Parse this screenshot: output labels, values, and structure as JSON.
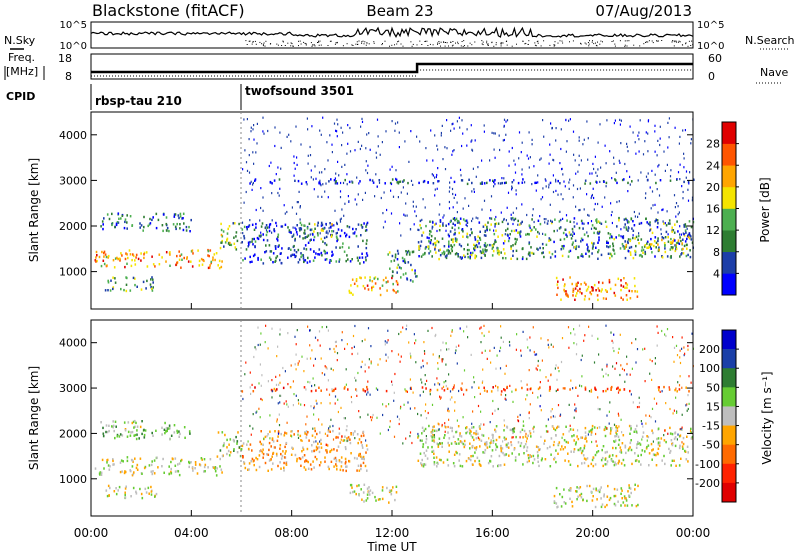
{
  "header": {
    "station": "Blackstone (fitACF)",
    "beam": "Beam 23",
    "date": "07/Aug/2013"
  },
  "noise_panel": {
    "left_label": "N.Sky",
    "right_label": "N.Search",
    "left_ticks": [
      "10^5",
      "10^0"
    ],
    "right_ticks": [
      "10^5",
      "10^0"
    ]
  },
  "freq_panel": {
    "left_label_line1": "Freq.",
    "left_label_line2": "[MHz]",
    "left_ticks": [
      "18",
      "8"
    ],
    "right_label": "Nave",
    "right_ticks": [
      "60",
      "0"
    ]
  },
  "cpid_panel": {
    "label": "CPID",
    "modes": [
      {
        "name": "rbsp-tau 210",
        "start": 0
      },
      {
        "name": "twofsound 3501",
        "start": 6
      }
    ]
  },
  "time_axis": {
    "label": "Time UT",
    "ticks": [
      "00:00",
      "04:00",
      "08:00",
      "12:00",
      "16:00",
      "20:00",
      "00:00"
    ]
  },
  "colors": {
    "background": "#ffffff",
    "axis": "#000000"
  },
  "chart_data": [
    {
      "type": "heatmap",
      "parameter": "power",
      "ylabel": "Slant Range [km]",
      "xlim": [
        0,
        24
      ],
      "ylim": [
        180,
        4500
      ],
      "yticks": [
        1000,
        2000,
        3000,
        4000
      ],
      "colorbar": {
        "label": "Power [dB]",
        "ticks": [
          4,
          8,
          12,
          16,
          20,
          24,
          28
        ],
        "colors": [
          "#0000ff",
          "#1c3ea8",
          "#2e7d32",
          "#4caf50",
          "#f4e400",
          "#ffa500",
          "#ff5500",
          "#e00000"
        ],
        "range": [
          0,
          32
        ]
      },
      "echo_regions": [
        {
          "t0": 0.1,
          "t1": 5.2,
          "r0": 1100,
          "r1": 1500,
          "value": 22
        },
        {
          "t0": 0.3,
          "t1": 4.0,
          "r0": 1900,
          "r1": 2300,
          "value": 8
        },
        {
          "t0": 0.5,
          "t1": 2.6,
          "r0": 600,
          "r1": 900,
          "value": 12
        },
        {
          "t0": 5.0,
          "t1": 6.0,
          "r0": 1500,
          "r1": 2100,
          "value": 14
        },
        {
          "t0": 6.0,
          "t1": 11.0,
          "r0": 1200,
          "r1": 2100,
          "value": 6
        },
        {
          "t0": 8.3,
          "t1": 9.6,
          "r0": 1700,
          "r1": 2100,
          "value": 14
        },
        {
          "t0": 10.2,
          "t1": 12.2,
          "r0": 500,
          "r1": 900,
          "value": 22
        },
        {
          "t0": 11.8,
          "t1": 13.0,
          "r0": 800,
          "r1": 1500,
          "value": 10
        },
        {
          "t0": 13.0,
          "t1": 24.0,
          "r0": 1300,
          "r1": 2200,
          "value": 10
        },
        {
          "t0": 13.2,
          "t1": 16.5,
          "r0": 1400,
          "r1": 1700,
          "value": 14
        },
        {
          "t0": 21.2,
          "t1": 24.0,
          "r0": 1500,
          "r1": 1800,
          "value": 16
        },
        {
          "t0": 18.4,
          "t1": 21.8,
          "r0": 400,
          "r1": 900,
          "value": 24
        },
        {
          "t0": 6.0,
          "t1": 24.0,
          "r0": 2950,
          "r1": 3050,
          "value": 4
        }
      ]
    },
    {
      "type": "heatmap",
      "parameter": "velocity",
      "ylabel": "Slant Range [km]",
      "xlabel": "Time UT",
      "xlim": [
        0,
        24
      ],
      "ylim": [
        180,
        4500
      ],
      "yticks": [
        1000,
        2000,
        3000,
        4000
      ],
      "colorbar": {
        "label": "Velocity [m s⁻¹]",
        "ticks": [
          200,
          100,
          50,
          15,
          -15,
          -50,
          -100,
          -200
        ],
        "colors": [
          "#0000cc",
          "#1a3fa8",
          "#2e7d32",
          "#66cc33",
          "#bebebe",
          "#ffa500",
          "#ff6a00",
          "#ff2200",
          "#e00000"
        ],
        "range": [
          -250,
          250
        ]
      },
      "echo_regions": [
        {
          "t0": 0.1,
          "t1": 5.2,
          "r0": 1100,
          "r1": 1500,
          "value": 0
        },
        {
          "t0": 0.3,
          "t1": 4.0,
          "r0": 1900,
          "r1": 2300,
          "value": 40
        },
        {
          "t0": 0.5,
          "t1": 2.6,
          "r0": 600,
          "r1": 900,
          "value": 5
        },
        {
          "t0": 5.0,
          "t1": 6.0,
          "r0": 1500,
          "r1": 2100,
          "value": 30
        },
        {
          "t0": 6.0,
          "t1": 11.0,
          "r0": 1200,
          "r1": 2100,
          "value": -60
        },
        {
          "t0": 10.2,
          "t1": 12.2,
          "r0": 500,
          "r1": 900,
          "value": 0
        },
        {
          "t0": 13.0,
          "t1": 24.0,
          "r0": 1300,
          "r1": 2200,
          "value": 0
        },
        {
          "t0": 18.4,
          "t1": 21.8,
          "r0": 400,
          "r1": 900,
          "value": 0
        },
        {
          "t0": 6.0,
          "t1": 24.0,
          "r0": 2950,
          "r1": 3050,
          "value": -120
        }
      ]
    }
  ]
}
